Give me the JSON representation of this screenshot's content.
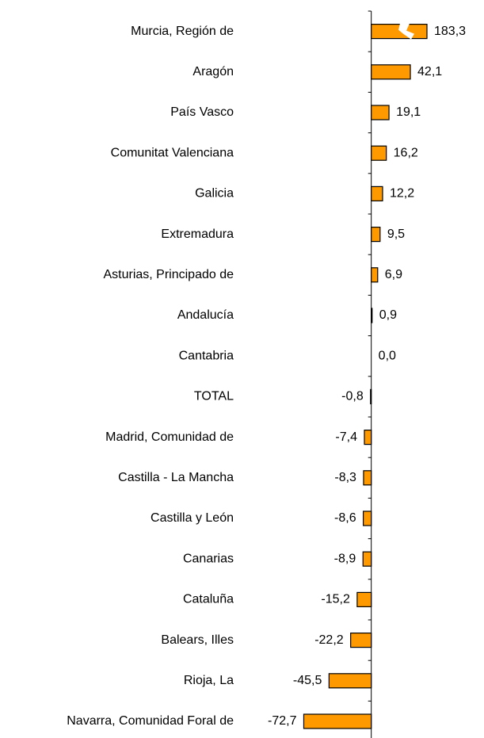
{
  "chart_data": {
    "type": "bar",
    "orientation": "horizontal",
    "categories": [
      "Murcia, Región de",
      "Aragón",
      "País Vasco",
      "Comunitat Valenciana",
      "Galicia",
      "Extremadura",
      "Asturias, Principado de",
      "Andalucía",
      "Cantabria",
      "TOTAL",
      "Madrid, Comunidad de",
      "Castilla - La Mancha",
      "Castilla y León",
      "Canarias",
      "Cataluña",
      "Balears, Illes",
      "Rioja, La",
      "Navarra, Comunidad Foral de"
    ],
    "values": [
      183.3,
      42.1,
      19.1,
      16.2,
      12.2,
      9.5,
      6.9,
      0.9,
      0.0,
      -0.8,
      -7.4,
      -8.3,
      -8.6,
      -8.9,
      -15.2,
      -22.2,
      -45.5,
      -72.7
    ],
    "value_labels": [
      "183,3",
      "42,1",
      "19,1",
      "16,2",
      "12,2",
      "9,5",
      "6,9",
      "0,9",
      "0,0",
      "-0,8",
      "-7,4",
      "-8,3",
      "-8,6",
      "-8,9",
      "-15,2",
      "-22,2",
      "-45,5",
      "-72,7"
    ],
    "color": "#ff9900",
    "xlim": [
      -97,
      60
    ]
  }
}
